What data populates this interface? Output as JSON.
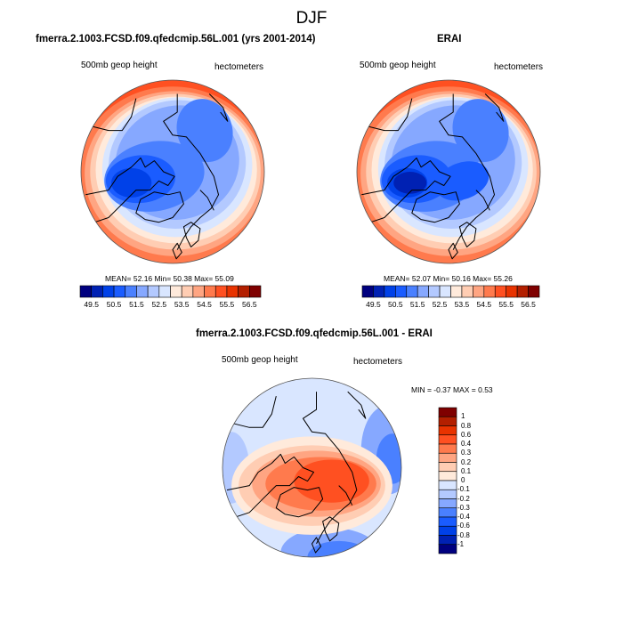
{
  "title": "DJF",
  "panels": [
    {
      "title": "fmerra.2.1003.FCSD.f09.qfedcmip.56L.001 (yrs 2001-2014)",
      "left_label": "500mb geop height",
      "right_label": "hectometers",
      "stats": "MEAN=  52.16  Min=  50.38  Max=  55.09"
    },
    {
      "title": "ERAI",
      "left_label": "500mb geop height",
      "right_label": "hectometers",
      "stats": "MEAN=  52.07  Min=  50.16  Max=  55.26"
    },
    {
      "title": "fmerra.2.1003.FCSD.f09.qfedcmip.56L.001 - ERAI",
      "left_label": "500mb geop height",
      "right_label": "hectometers",
      "stats": "MIN =  -0.37 MAX =   0.53"
    }
  ],
  "chart_data": [
    {
      "type": "heatmap",
      "projection": "polar stereographic (north pole)",
      "title": "fmerra.2.1003.FCSD.f09.qfedcmip.56L.001 (yrs 2001-2014)",
      "variable": "500mb geop height",
      "units": "hectometers",
      "mean": 52.16,
      "min": 50.38,
      "max": 55.09,
      "colorbar": {
        "orientation": "horizontal",
        "tick_labels": [
          "49.5",
          "50.5",
          "51.5",
          "52.5",
          "53.5",
          "54.5",
          "55.5",
          "56.5"
        ],
        "levels": [
          49.5,
          50,
          50.5,
          51,
          51.5,
          52,
          52.5,
          53,
          53.5,
          54,
          54.5,
          55,
          55.5,
          56,
          56.5
        ],
        "colors": [
          "#00007f",
          "#0021b3",
          "#0041e8",
          "#1a5cff",
          "#4a80ff",
          "#86a8ff",
          "#b3c9ff",
          "#d9e6ff",
          "#ffeadb",
          "#ffcdb3",
          "#ffa582",
          "#ff7a4d",
          "#ff5021",
          "#e83300",
          "#b31f00",
          "#7f0000"
        ]
      }
    },
    {
      "type": "heatmap",
      "projection": "polar stereographic (north pole)",
      "title": "ERAI",
      "variable": "500mb geop height",
      "units": "hectometers",
      "mean": 52.07,
      "min": 50.16,
      "max": 55.26,
      "colorbar": {
        "orientation": "horizontal",
        "tick_labels": [
          "49.5",
          "50.5",
          "51.5",
          "52.5",
          "53.5",
          "54.5",
          "55.5",
          "56.5"
        ],
        "levels": [
          49.5,
          50,
          50.5,
          51,
          51.5,
          52,
          52.5,
          53,
          53.5,
          54,
          54.5,
          55,
          55.5,
          56,
          56.5
        ],
        "colors": [
          "#00007f",
          "#0021b3",
          "#0041e8",
          "#1a5cff",
          "#4a80ff",
          "#86a8ff",
          "#b3c9ff",
          "#d9e6ff",
          "#ffeadb",
          "#ffcdb3",
          "#ffa582",
          "#ff7a4d",
          "#ff5021",
          "#e83300",
          "#b31f00",
          "#7f0000"
        ]
      }
    },
    {
      "type": "heatmap",
      "projection": "polar stereographic (north pole)",
      "title": "fmerra.2.1003.FCSD.f09.qfedcmip.56L.001 - ERAI",
      "variable": "500mb geop height",
      "units": "hectometers",
      "min": -0.37,
      "max": 0.53,
      "colorbar": {
        "orientation": "vertical",
        "tick_labels": [
          "1",
          "0.8",
          "0.6",
          "0.4",
          "0.3",
          "0.2",
          "0.1",
          "0",
          "-0.1",
          "-0.2",
          "-0.3",
          "-0.4",
          "-0.6",
          "-0.8",
          "-1"
        ],
        "levels": [
          1,
          0.8,
          0.6,
          0.4,
          0.3,
          0.2,
          0.1,
          0,
          -0.1,
          -0.2,
          -0.3,
          -0.4,
          -0.6,
          -0.8,
          -1
        ],
        "colors": [
          "#7f0000",
          "#b31f00",
          "#e83300",
          "#ff5021",
          "#ff7a4d",
          "#ffa582",
          "#ffcdb3",
          "#ffeadb",
          "#d9e6ff",
          "#b3c9ff",
          "#86a8ff",
          "#4a80ff",
          "#1a5cff",
          "#0041e8",
          "#0021b3",
          "#00007f"
        ]
      }
    }
  ]
}
